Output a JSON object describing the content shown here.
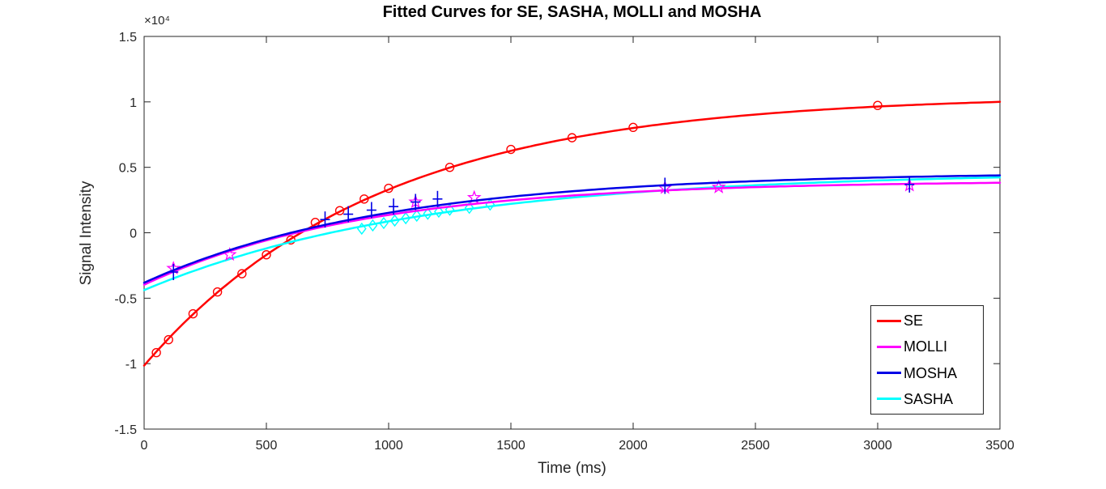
{
  "window": {
    "background": "#FFFFFF"
  },
  "chart_data": {
    "type": "line",
    "title": "Fitted Curves for SE, SASHA, MOLLI and MOSHA",
    "xlabel": "Time (ms)",
    "ylabel": "Signal Intensity",
    "y_exponent_label": "×10⁴",
    "y_unit_scale": 10000,
    "xlim": [
      0,
      3500
    ],
    "ylim": [
      -15000,
      15000
    ],
    "x_ticks": [
      0,
      500,
      1000,
      1500,
      2000,
      2500,
      3000,
      3500
    ],
    "y_ticks": [
      1.5,
      1,
      0.5,
      0,
      -0.5,
      -1,
      -1.5
    ],
    "grid": false,
    "axis_color": "#262626",
    "tick_label_color": "#262626",
    "fit_model": "signal(t) = A - B*exp(-t/T1), signal in units of 10^4",
    "legend": {
      "position": "lower-right",
      "entries": [
        "SE",
        "MOLLI",
        "MOSHA",
        "SASHA"
      ]
    },
    "draw_order": [
      "SE",
      "SASHA",
      "MOLLI",
      "MOSHA"
    ],
    "series": [
      {
        "name": "SE",
        "color": "#FF0000",
        "marker": "circle",
        "fit": {
          "A": 1.052,
          "B": 2.067,
          "T1_ms": 950
        },
        "points": [
          [
            50,
            -0.916
          ],
          [
            100,
            -0.817
          ],
          [
            200,
            -0.619
          ],
          [
            300,
            -0.452
          ],
          [
            400,
            -0.313
          ],
          [
            500,
            -0.168
          ],
          [
            600,
            -0.055
          ],
          [
            700,
            0.079
          ],
          [
            800,
            0.169
          ],
          [
            900,
            0.258
          ],
          [
            1000,
            0.34
          ],
          [
            1250,
            0.5
          ],
          [
            1500,
            0.637
          ],
          [
            1750,
            0.726
          ],
          [
            2000,
            0.805
          ],
          [
            3000,
            0.973
          ]
        ]
      },
      {
        "name": "MOLLI",
        "color": "#FF00FF",
        "marker": "pentagram",
        "fit": {
          "A": 0.398,
          "B": 0.795,
          "T1_ms": 900
        },
        "points": [
          [
            120,
            -0.272
          ],
          [
            350,
            -0.167
          ],
          [
            1110,
            0.235
          ],
          [
            1350,
            0.269
          ],
          [
            2130,
            0.343
          ],
          [
            2350,
            0.348
          ],
          [
            3130,
            0.362
          ]
        ]
      },
      {
        "name": "MOSHA",
        "color": "#0000E6",
        "marker": "plus",
        "fit": {
          "A": 0.464,
          "B": 0.846,
          "T1_ms": 1000
        },
        "points": [
          [
            120,
            -0.3
          ],
          [
            740,
            0.101
          ],
          [
            835,
            0.142
          ],
          [
            930,
            0.173
          ],
          [
            1020,
            0.2
          ],
          [
            1110,
            0.235
          ],
          [
            1200,
            0.258
          ],
          [
            2130,
            0.359
          ],
          [
            3130,
            0.369
          ]
        ]
      },
      {
        "name": "SASHA",
        "color": "#00FFFF",
        "marker": "diamond",
        "fit": {
          "A": 0.466,
          "B": 0.904,
          "T1_ms": 1150
        },
        "points": [
          [
            890,
            0.031
          ],
          [
            935,
            0.056
          ],
          [
            980,
            0.074
          ],
          [
            1025,
            0.093
          ],
          [
            1070,
            0.111
          ],
          [
            1115,
            0.13
          ],
          [
            1160,
            0.145
          ],
          [
            1205,
            0.161
          ],
          [
            1250,
            0.176
          ],
          [
            1330,
            0.19
          ],
          [
            1415,
            0.215
          ]
        ]
      }
    ]
  }
}
